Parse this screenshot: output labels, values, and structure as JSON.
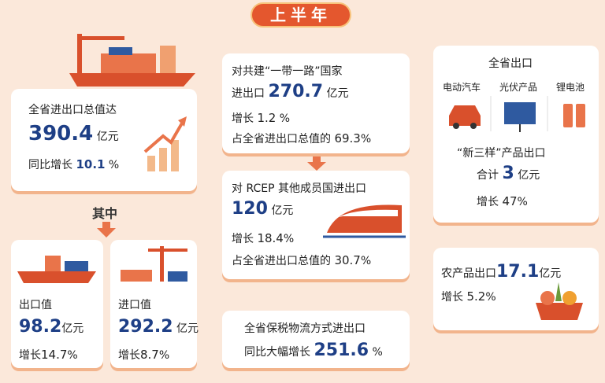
{
  "header": {
    "title": "上半年"
  },
  "total": {
    "label": "全省进出口总值达",
    "value": 390.4,
    "unit": "亿元",
    "growth_label": "同比增长",
    "growth": 10.1,
    "growth_unit": "%"
  },
  "among": {
    "label": "其中"
  },
  "export": {
    "label": "出口值",
    "value": 98.2,
    "unit": "亿元",
    "growth_label": "增长",
    "growth": 14.7,
    "growth_unit": "%"
  },
  "import": {
    "label": "进口值",
    "value": 292.2,
    "unit": "亿元",
    "growth_label": "增长",
    "growth": 8.7,
    "growth_unit": "%"
  },
  "belt_road": {
    "label": "对共建“一带一路”国家",
    "sub_label": "进出口",
    "value": 270.7,
    "unit": "亿元",
    "growth_label": "增长",
    "growth": 1.2,
    "growth_unit": "%",
    "share_label": "占全省进出口总值的",
    "share": 69.3,
    "share_unit": "%"
  },
  "rcep": {
    "label": "对 RCEP 其他成员国进出口",
    "value": 120,
    "unit": "亿元",
    "growth_label": "增长",
    "growth": 18.4,
    "growth_unit": "%",
    "share_label": "占全省进出口总值的",
    "share": 30.7,
    "share_unit": "%"
  },
  "bonded": {
    "label": "全省保税物流方式进出口",
    "growth_label": "同比大幅增长",
    "growth": 251.6,
    "growth_unit": "%"
  },
  "new_three": {
    "label": "全省出口",
    "items": [
      "电动汽车",
      "光伏产品",
      "锂电池"
    ],
    "title": "“新三样”产品出口",
    "total_label": "合计",
    "value": 3,
    "unit": "亿元",
    "growth_label": "增长",
    "growth": 47,
    "growth_unit": "%"
  },
  "agri": {
    "label": "农产品出口",
    "value": 17.1,
    "unit": "亿元",
    "growth_label": "增长",
    "growth": 5.2,
    "growth_unit": "%"
  }
}
